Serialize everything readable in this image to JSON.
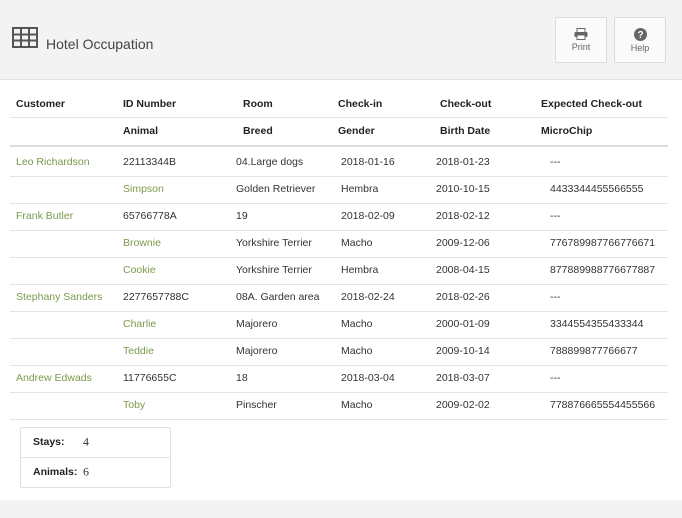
{
  "header": {
    "title": "Hotel Occupation",
    "buttons": [
      "Print",
      "Help"
    ]
  },
  "table": {
    "headers": [
      [
        "Customer",
        "ID Number",
        "Room",
        "Check-in",
        "Check-out",
        "Expected Check-out"
      ],
      [
        "Animal",
        "Breed",
        "Gender",
        "Birth Date",
        "MicroChip"
      ]
    ],
    "stays": [
      {
        "customer": [
          "Leo Richardson",
          "22113344B",
          "04.Large dogs",
          "2018-01-16",
          "2018-01-23",
          "---"
        ],
        "animals": [
          [
            "Simpson",
            "Golden Retriever",
            "Hembra",
            "2010-10-15",
            "4433344455566555"
          ]
        ]
      },
      {
        "customer": [
          "Frank Butler",
          "65766778A",
          "19",
          "2018-02-09",
          "2018-02-12",
          "---"
        ],
        "animals": [
          [
            "Brownie",
            "Yorkshire Terrier",
            "Macho",
            "2009-12-06",
            "776789987766776671"
          ],
          [
            "Cookie",
            "Yorkshire Terrier",
            "Hembra",
            "2008-04-15",
            "877889988776677887"
          ]
        ]
      },
      {
        "customer": [
          "Stephany Sanders",
          "2277657788C",
          "08A. Garden area",
          "2018-02-24",
          "2018-02-26",
          "---"
        ],
        "animals": [
          [
            "Charlie",
            "Majorero",
            "Macho",
            "2000-01-09",
            "3344554355433344"
          ],
          [
            "Teddie",
            "Majorero",
            "Macho",
            "2009-10-14",
            "788899877766677"
          ]
        ]
      },
      {
        "customer": [
          "Andrew Edwads",
          "11776655C",
          "18",
          "2018-03-04",
          "2018-03-07",
          "---"
        ],
        "animals": [
          [
            "Toby",
            "Pinscher",
            "Macho",
            "2009-02-02",
            "778876665554455566"
          ]
        ]
      }
    ]
  },
  "summary": {
    "stays": {
      "label": "Stays:",
      "value": 4
    },
    "animals": {
      "label": "Animals:",
      "value": 6
    }
  }
}
